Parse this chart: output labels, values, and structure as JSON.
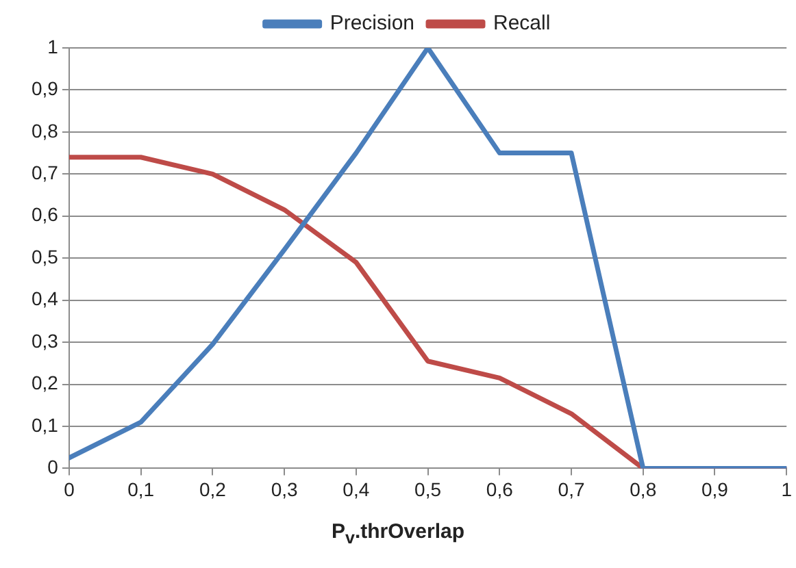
{
  "chart_data": {
    "type": "line",
    "xlabel": "P$_{v}$.thrOverlap",
    "x": [
      0,
      0.1,
      0.2,
      0.3,
      0.4,
      0.5,
      0.6,
      0.7,
      0.8,
      0.9,
      1
    ],
    "series": [
      {
        "name": "Precision",
        "color": "#4a7ebb",
        "values": [
          0.025,
          0.11,
          0.295,
          0.52,
          0.75,
          1.0,
          0.75,
          0.75,
          0,
          0,
          0
        ]
      },
      {
        "name": "Recall",
        "color": "#be4b48",
        "values": [
          0.74,
          0.74,
          0.7,
          0.615,
          0.49,
          0.255,
          0.215,
          0.13,
          0,
          0,
          0
        ]
      }
    ],
    "xlim": [
      0,
      1
    ],
    "xticks": [
      0,
      {
        "value": 0.1,
        "label": "0,1"
      },
      {
        "value": 0.2,
        "label": "0,2"
      },
      {
        "value": 0.3,
        "label": "0,3"
      },
      {
        "value": 0.4,
        "label": "0,4"
      },
      {
        "value": 0.5,
        "label": "0,5"
      },
      {
        "value": 0.6,
        "label": "0,6"
      },
      {
        "value": 0.7,
        "label": "0,7"
      },
      {
        "value": 0.8,
        "label": "0,8"
      },
      {
        "value": 0.9,
        "label": "0,9"
      },
      1
    ],
    "ylim": [
      0,
      1
    ],
    "yticks": [
      0,
      {
        "value": 0.1,
        "label": "0,1"
      },
      {
        "value": 0.2,
        "label": "0,2"
      },
      {
        "value": 0.3,
        "label": "0,3"
      },
      {
        "value": 0.4,
        "label": "0,4"
      },
      {
        "value": 0.5,
        "label": "0,5"
      },
      {
        "value": 0.6,
        "label": "0,6"
      },
      {
        "value": 0.7,
        "label": "0,7"
      },
      {
        "value": 0.8,
        "label": "0,8"
      },
      {
        "value": 0.9,
        "label": "0,9"
      },
      1
    ],
    "grid": "y",
    "legend": "top",
    "marker": "none",
    "line_style": "solid"
  }
}
